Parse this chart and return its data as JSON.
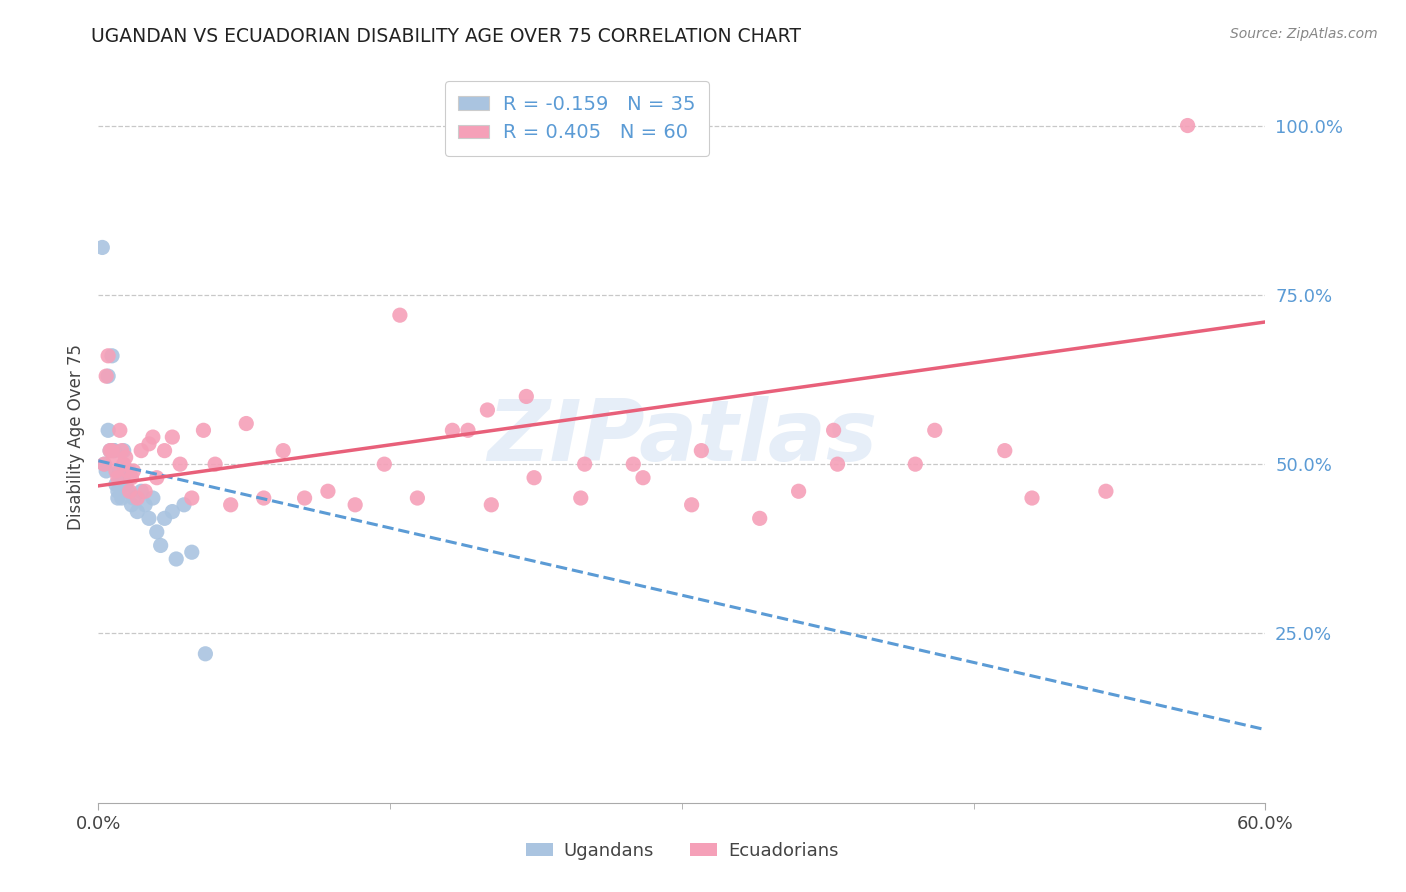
{
  "title": "UGANDAN VS ECUADORIAN DISABILITY AGE OVER 75 CORRELATION CHART",
  "source": "Source: ZipAtlas.com",
  "ylabel": "Disability Age Over 75",
  "xlabel_ugandans": "Ugandans",
  "xlabel_ecuadorians": "Ecuadorians",
  "xmin": 0.0,
  "xmax": 0.6,
  "ymin": 0.0,
  "ymax": 1.08,
  "ytick_vals": [
    0.25,
    0.5,
    0.75,
    1.0
  ],
  "ytick_labels": [
    "25.0%",
    "50.0%",
    "75.0%",
    "100.0%"
  ],
  "xtick_vals": [
    0.0,
    0.6
  ],
  "xtick_labels": [
    "0.0%",
    "60.0%"
  ],
  "ugandan_color": "#aac4e0",
  "ecuadorian_color": "#f5a0b8",
  "ugandan_line_color": "#5b9bd5",
  "ecuadorian_line_color": "#e8607a",
  "ugandan_R": -0.159,
  "ugandan_N": 35,
  "ecuadorian_R": 0.405,
  "ecuadorian_N": 60,
  "text_color_blue": "#5b9bd5",
  "background_color": "#ffffff",
  "grid_color": "#c8c8c8",
  "watermark": "ZIPatlas",
  "ugandan_x": [
    0.002,
    0.003,
    0.004,
    0.005,
    0.005,
    0.006,
    0.007,
    0.008,
    0.008,
    0.009,
    0.01,
    0.01,
    0.011,
    0.011,
    0.012,
    0.012,
    0.013,
    0.014,
    0.015,
    0.016,
    0.017,
    0.018,
    0.02,
    0.022,
    0.024,
    0.026,
    0.028,
    0.03,
    0.032,
    0.034,
    0.038,
    0.04,
    0.044,
    0.048,
    0.055
  ],
  "ugandan_y": [
    0.82,
    0.5,
    0.49,
    0.63,
    0.55,
    0.52,
    0.66,
    0.52,
    0.52,
    0.47,
    0.46,
    0.45,
    0.49,
    0.48,
    0.48,
    0.45,
    0.52,
    0.47,
    0.46,
    0.49,
    0.44,
    0.45,
    0.43,
    0.46,
    0.44,
    0.42,
    0.45,
    0.4,
    0.38,
    0.42,
    0.43,
    0.36,
    0.44,
    0.37,
    0.22
  ],
  "ecuadorian_x": [
    0.003,
    0.004,
    0.005,
    0.006,
    0.007,
    0.008,
    0.009,
    0.01,
    0.011,
    0.012,
    0.013,
    0.014,
    0.015,
    0.016,
    0.017,
    0.018,
    0.02,
    0.022,
    0.024,
    0.026,
    0.028,
    0.03,
    0.034,
    0.038,
    0.042,
    0.048,
    0.054,
    0.06,
    0.068,
    0.076,
    0.085,
    0.095,
    0.106,
    0.118,
    0.132,
    0.147,
    0.164,
    0.182,
    0.202,
    0.224,
    0.248,
    0.275,
    0.305,
    0.34,
    0.378,
    0.42,
    0.466,
    0.518,
    0.2,
    0.25,
    0.31,
    0.36,
    0.19,
    0.28,
    0.38,
    0.43,
    0.155,
    0.22,
    0.48,
    0.56
  ],
  "ecuadorian_y": [
    0.5,
    0.63,
    0.66,
    0.52,
    0.52,
    0.51,
    0.49,
    0.48,
    0.55,
    0.52,
    0.5,
    0.51,
    0.49,
    0.46,
    0.48,
    0.49,
    0.45,
    0.52,
    0.46,
    0.53,
    0.54,
    0.48,
    0.52,
    0.54,
    0.5,
    0.45,
    0.55,
    0.5,
    0.44,
    0.56,
    0.45,
    0.52,
    0.45,
    0.46,
    0.44,
    0.5,
    0.45,
    0.55,
    0.44,
    0.48,
    0.45,
    0.5,
    0.44,
    0.42,
    0.55,
    0.5,
    0.52,
    0.46,
    0.58,
    0.5,
    0.52,
    0.46,
    0.55,
    0.48,
    0.5,
    0.55,
    0.72,
    0.6,
    0.45,
    1.0
  ],
  "u_line_x0": 0.0,
  "u_line_x1": 0.6,
  "u_line_y0": 0.505,
  "u_line_y1": 0.108,
  "e_line_x0": 0.0,
  "e_line_x1": 0.6,
  "e_line_y0": 0.468,
  "e_line_y1": 0.71
}
